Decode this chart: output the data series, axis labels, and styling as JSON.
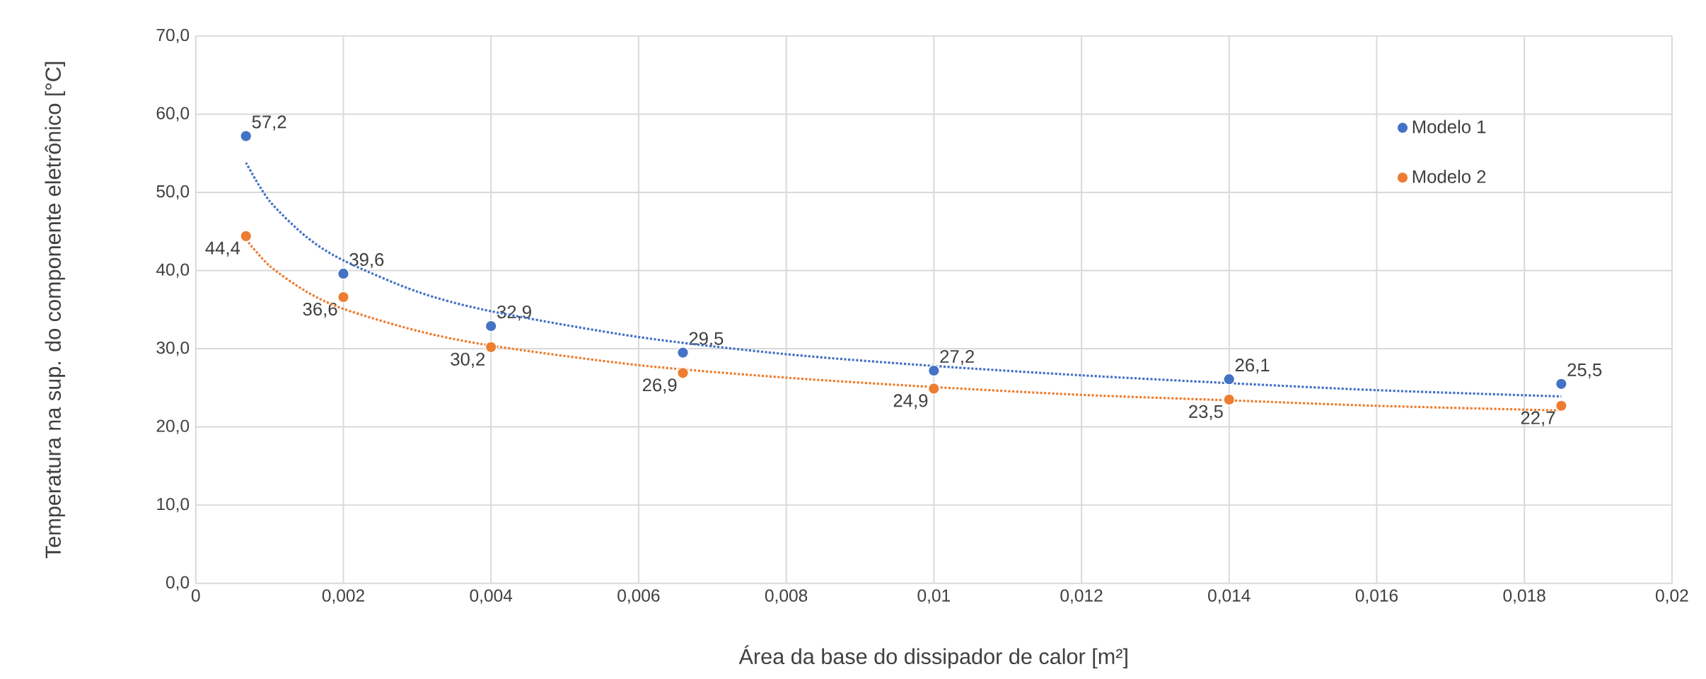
{
  "chart_data": {
    "type": "scatter",
    "xlabel": "Área da base do dissipador de calor [m²]",
    "ylabel": "Temperatura na sup. do componente eletrônico [°C]",
    "xlim": [
      0,
      0.02
    ],
    "ylim": [
      0,
      70
    ],
    "xticks": [
      0,
      {
        "value": 0.002,
        "label": "0,002"
      },
      {
        "value": 0.004,
        "label": "0,004"
      },
      {
        "value": 0.006,
        "label": "0,006"
      },
      {
        "value": 0.008,
        "label": "0,008"
      },
      {
        "value": 0.01,
        "label": "0,01"
      },
      {
        "value": 0.012,
        "label": "0,012"
      },
      {
        "value": 0.014,
        "label": "0,014"
      },
      {
        "value": 0.016,
        "label": "0,016"
      },
      {
        "value": 0.018,
        "label": "0,018"
      },
      {
        "value": 0.02,
        "label": "0,02"
      }
    ],
    "yticks": [
      {
        "value": 0,
        "label": "0,0"
      },
      {
        "value": 10,
        "label": "10,0"
      },
      {
        "value": 20,
        "label": "20,0"
      },
      {
        "value": 30,
        "label": "30,0"
      },
      {
        "value": 40,
        "label": "40,0"
      },
      {
        "value": 50,
        "label": "50,0"
      },
      {
        "value": 60,
        "label": "60,0"
      },
      {
        "value": 70,
        "label": "70,0"
      }
    ],
    "grid": true,
    "legend": "top right",
    "marker": "circle",
    "series": [
      {
        "name": "Modelo 1",
        "color": "#4472c4",
        "x": [
          0.00068,
          0.002,
          0.004,
          0.0066,
          0.01,
          0.014,
          0.0185
        ],
        "values": [
          57.2,
          39.6,
          32.9,
          29.5,
          27.2,
          26.1,
          25.5
        ],
        "value_labels": [
          "57,2",
          "39,6",
          "32,9",
          "29,5",
          "27,2",
          "26,1",
          "25,5"
        ]
      },
      {
        "name": "Modelo 2",
        "color": "#ed7d31",
        "x": [
          0.00068,
          0.002,
          0.004,
          0.0066,
          0.01,
          0.014,
          0.0185
        ],
        "values": [
          44.4,
          36.6,
          30.2,
          26.9,
          24.9,
          23.5,
          22.7
        ],
        "value_labels": [
          "44,4",
          "36,6",
          "30,2",
          "26,9",
          "24,9",
          "23,5",
          "22,7"
        ]
      },
      {
        "type": "line",
        "line_style": "dotted",
        "marker": "none",
        "color": "#4472c4",
        "x": [
          0.00068,
          0.001,
          0.0015,
          0.002,
          0.003,
          0.004,
          0.006,
          0.008,
          0.01,
          0.012,
          0.014,
          0.016,
          0.0185
        ],
        "values": [
          53.8,
          48.9,
          44.3,
          41.3,
          37.3,
          34.8,
          31.5,
          29.3,
          27.8,
          26.6,
          25.6,
          24.7,
          23.9
        ]
      },
      {
        "type": "line",
        "line_style": "dotted",
        "marker": "none",
        "color": "#ed7d31",
        "x": [
          0.00068,
          0.001,
          0.0015,
          0.002,
          0.003,
          0.004,
          0.006,
          0.008,
          0.01,
          0.012,
          0.014,
          0.016,
          0.0185
        ],
        "values": [
          44.0,
          40.6,
          37.3,
          35.1,
          32.3,
          30.4,
          27.9,
          26.3,
          25.1,
          24.1,
          23.4,
          22.7,
          22.1
        ]
      }
    ]
  }
}
